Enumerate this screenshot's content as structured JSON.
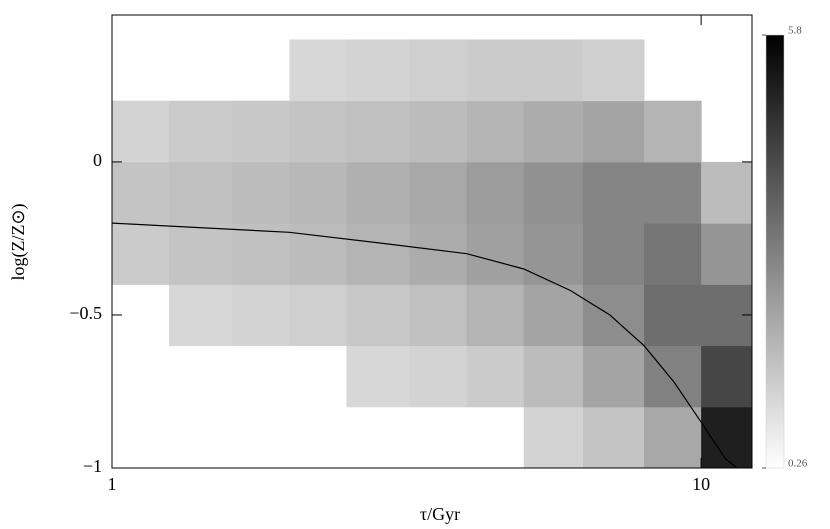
{
  "chart_data": {
    "type": "density",
    "xlabel": "τ/Gyr",
    "ylabel": "log(Z/Z⊙)",
    "xscale": "log",
    "xlim": [
      1,
      12.2
    ],
    "ylim": [
      -1,
      0.48
    ],
    "xticks": [
      1,
      10
    ],
    "yticks": [
      0,
      {
        "value": -0.5,
        "label": "−0.5"
      },
      {
        "value": -1,
        "label": "−1"
      }
    ],
    "xedges": [
      1,
      1.25,
      1.6,
      2,
      2.5,
      3.2,
      4,
      5,
      6.3,
      8,
      10,
      12.2
    ],
    "yedges": [
      -1,
      -0.8,
      -0.6,
      -0.4,
      -0.2,
      0,
      0.2,
      0.4
    ],
    "density": [
      [
        null,
        null,
        null,
        null,
        null,
        null,
        null,
        0.4,
        0.8,
        1.5,
        5.0
      ],
      [
        null,
        null,
        null,
        null,
        0.3,
        0.4,
        0.6,
        1.0,
        1.6,
        2.5,
        4.0
      ],
      [
        null,
        0.3,
        0.4,
        0.5,
        0.7,
        0.9,
        1.2,
        1.6,
        2.2,
        3.0,
        3.0
      ],
      [
        0.6,
        0.8,
        0.9,
        1.0,
        1.2,
        1.4,
        1.7,
        2.0,
        2.4,
        2.8,
        2.0
      ],
      [
        0.8,
        0.9,
        1.0,
        1.1,
        1.3,
        1.5,
        1.8,
        2.1,
        2.4,
        2.4,
        1.0
      ],
      [
        0.4,
        0.6,
        0.7,
        0.8,
        0.9,
        1.0,
        1.2,
        1.4,
        1.6,
        1.2,
        null
      ],
      [
        null,
        null,
        null,
        0.3,
        0.4,
        0.5,
        0.6,
        0.6,
        0.5,
        null,
        null
      ]
    ],
    "colormap": [
      "#ffffff",
      "#000000"
    ],
    "clim": [
      0.26,
      5.8
    ],
    "cticks": [
      0.26,
      5.8
    ],
    "line": {
      "color": "#000000",
      "x": [
        1,
        2,
        3,
        4,
        5,
        6,
        7,
        8,
        9,
        10,
        11,
        11.5
      ],
      "y": [
        -0.2,
        -0.23,
        -0.27,
        -0.3,
        -0.35,
        -0.42,
        -0.5,
        -0.6,
        -0.72,
        -0.85,
        -0.97,
        -1
      ]
    }
  }
}
